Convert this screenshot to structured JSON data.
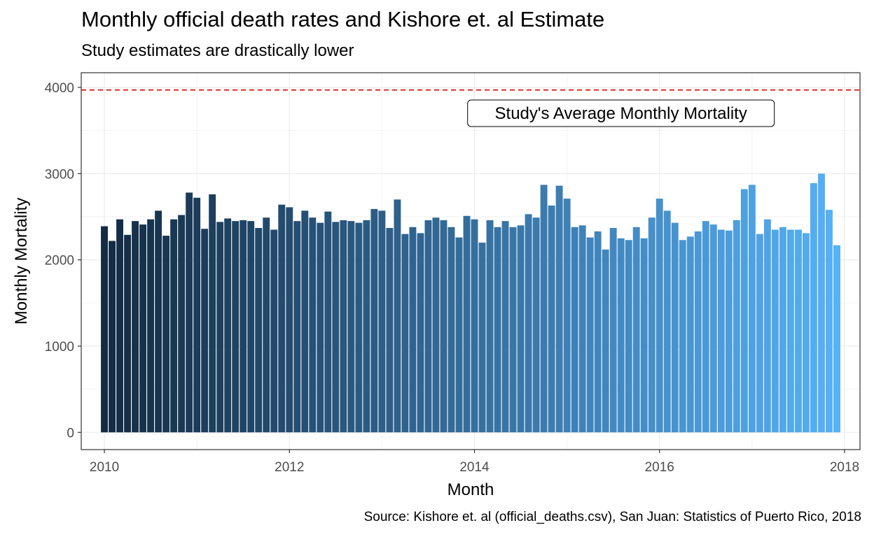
{
  "chart_data": {
    "type": "bar",
    "title": "Monthly official death rates and Kishore et. al Estimate",
    "subtitle": "Study estimates are drastically lower",
    "caption": "Source: Kishore et. al (official_deaths.csv), San Juan: Statistics of Puerto Rico, 2018",
    "xlabel": "Month",
    "ylabel": "Monthly Mortality",
    "x_start": "2010-01",
    "x_ticks": [
      "2010",
      "2012",
      "2014",
      "2016",
      "2018"
    ],
    "y_ticks": [
      "0",
      "1000",
      "2000",
      "3000",
      "4000"
    ],
    "xlim": [
      "2009-10",
      "2018-03"
    ],
    "ylim": [
      -200,
      4170
    ],
    "grid": true,
    "bar_color_gradient": [
      "#132b43",
      "#56b1f7"
    ],
    "reference_line": {
      "y": 3970,
      "color": "#e00000",
      "style": "dashed"
    },
    "annotation": {
      "label": "Study's Average Monthly Mortality",
      "x": "2015-08",
      "y": 3700
    },
    "values": [
      2390,
      2220,
      2470,
      2290,
      2450,
      2410,
      2470,
      2570,
      2280,
      2470,
      2520,
      2780,
      2720,
      2360,
      2760,
      2440,
      2480,
      2450,
      2460,
      2450,
      2370,
      2490,
      2350,
      2640,
      2610,
      2450,
      2570,
      2490,
      2430,
      2560,
      2440,
      2460,
      2450,
      2430,
      2460,
      2590,
      2570,
      2370,
      2700,
      2300,
      2380,
      2310,
      2460,
      2490,
      2460,
      2380,
      2260,
      2510,
      2470,
      2200,
      2460,
      2380,
      2450,
      2380,
      2400,
      2530,
      2490,
      2870,
      2630,
      2860,
      2710,
      2380,
      2400,
      2260,
      2330,
      2120,
      2370,
      2250,
      2230,
      2380,
      2250,
      2490,
      2710,
      2570,
      2430,
      2230,
      2270,
      2330,
      2450,
      2410,
      2350,
      2340,
      2460,
      2820,
      2870,
      2300,
      2470,
      2350,
      2380,
      2350,
      2350,
      2310,
      2890,
      3000,
      2580,
      2170
    ]
  }
}
